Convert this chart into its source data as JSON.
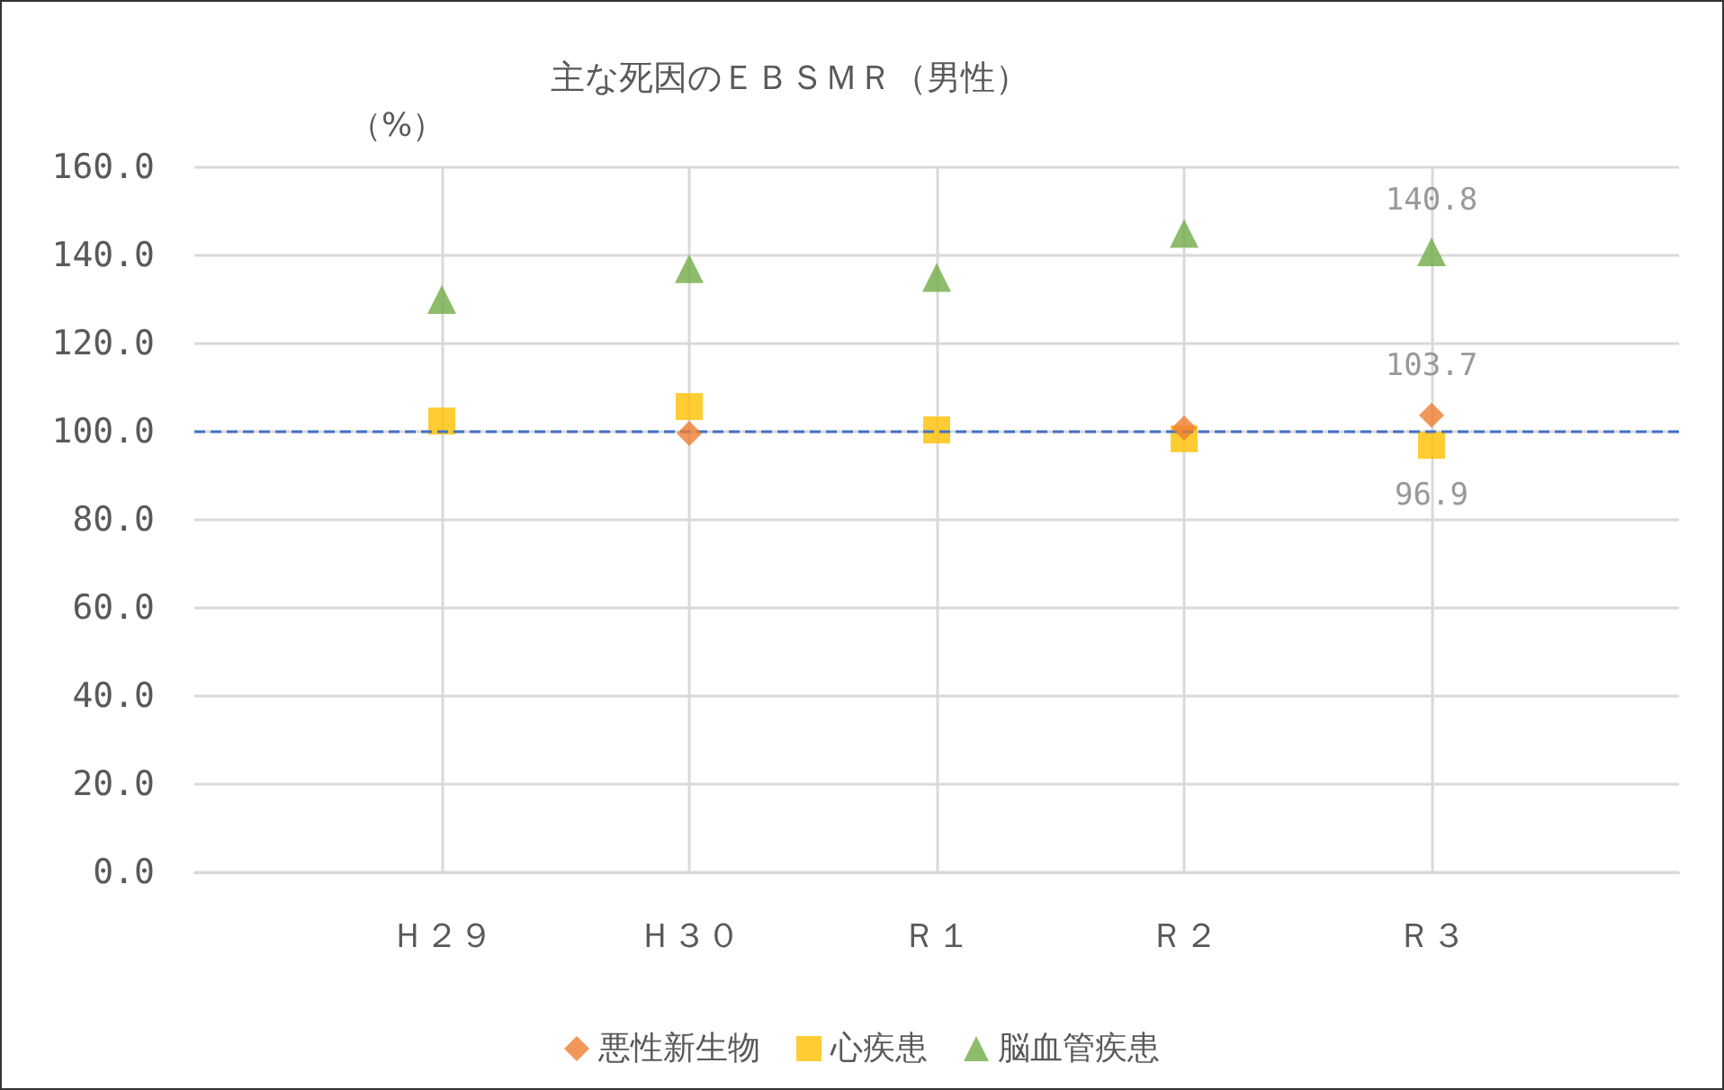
{
  "chart_data": {
    "type": "scatter",
    "title": "主な死因のＥＢＳＭＲ（男性）",
    "ylabel": "（%）",
    "categories": [
      "Ｈ２９",
      "Ｈ３０",
      "Ｒ１",
      "Ｒ２",
      "Ｒ３"
    ],
    "series": [
      {
        "name": "悪性新生物",
        "color": "#ed7d31",
        "marker": "diamond",
        "values": [
          null,
          99.6,
          null,
          100.8,
          103.7
        ],
        "value_labels": [
          null,
          null,
          null,
          null,
          "103.7"
        ]
      },
      {
        "name": "心疾患",
        "color": "#ffc000",
        "marker": "square",
        "values": [
          102.4,
          105.7,
          100.4,
          98.4,
          96.9
        ],
        "value_labels": [
          null,
          null,
          null,
          null,
          "96.9"
        ]
      },
      {
        "name": "脳血管疾患",
        "color": "#70ad47",
        "marker": "triangle",
        "values": [
          130,
          137,
          135,
          145,
          140.8
        ],
        "value_labels": [
          null,
          null,
          null,
          null,
          "140.8"
        ]
      }
    ],
    "ylim": [
      0,
      160
    ],
    "yticks": [
      {
        "value": 0,
        "label": "0.0"
      },
      {
        "value": 20,
        "label": "20.0"
      },
      {
        "value": 40,
        "label": "40.0"
      },
      {
        "value": 60,
        "label": "60.0"
      },
      {
        "value": 80,
        "label": "80.0"
      },
      {
        "value": 100,
        "label": "100.0"
      },
      {
        "value": 120,
        "label": "120.0"
      },
      {
        "value": 140,
        "label": "140.0"
      },
      {
        "value": 160,
        "label": "160.0"
      }
    ],
    "ref_lines": [
      {
        "axis": "y",
        "value": 100,
        "color": "#4472c4",
        "line_style": "dashed"
      }
    ],
    "grid": true,
    "legend": "bottom"
  }
}
